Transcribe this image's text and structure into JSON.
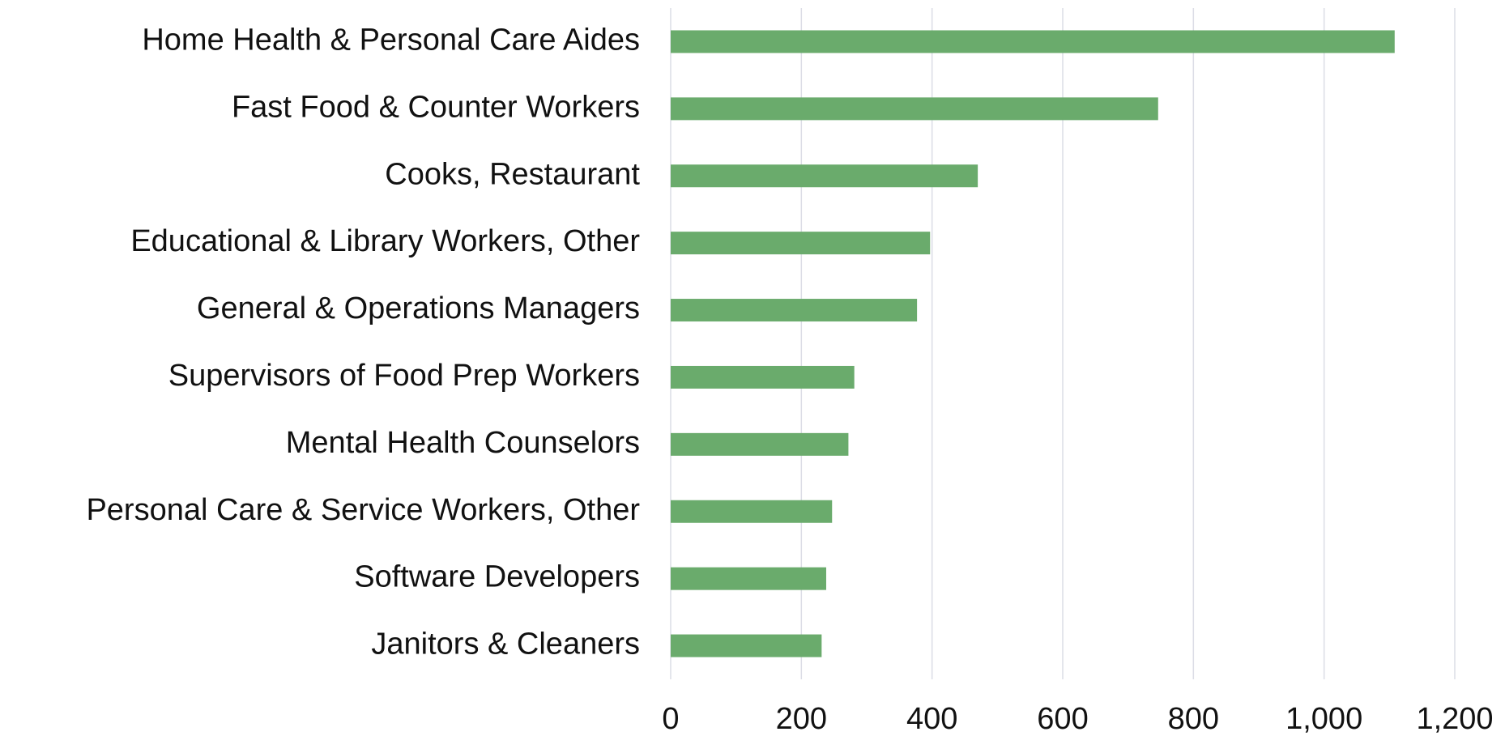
{
  "chart_data": {
    "type": "hbar",
    "categories": [
      "Home Health & Personal Care Aides",
      "Fast Food & Counter Workers",
      "Cooks, Restaurant",
      "Educational & Library Workers, Other",
      "General & Operations Managers",
      "Supervisors of Food Prep Workers",
      "Mental Health Counselors",
      "Personal Care & Service Workers, Other",
      "Software Developers",
      "Janitors & Cleaners"
    ],
    "values": [
      1108,
      746,
      470,
      397,
      377,
      281,
      272,
      247,
      238,
      231
    ],
    "color": "#6aab6c",
    "xlim": [
      0,
      1200
    ],
    "xticks": [
      0,
      200,
      400,
      600,
      800,
      {
        "value": 1000,
        "label": "1,000"
      },
      {
        "value": 1200,
        "label": "1,200"
      }
    ],
    "grid": true
  }
}
